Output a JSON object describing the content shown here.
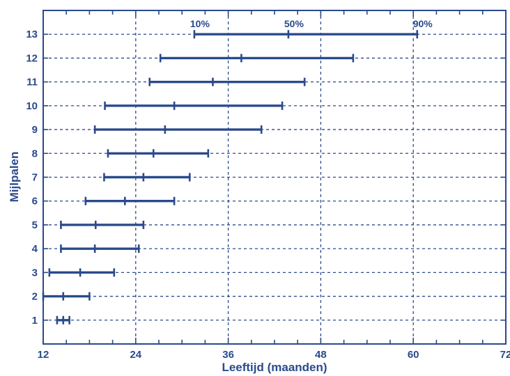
{
  "chart_data": {
    "type": "range",
    "xlabel": "Leeftijd (maanden)",
    "ylabel": "Mijlpalen",
    "xlim": [
      12,
      72
    ],
    "ylim": [
      0,
      14
    ],
    "x_ticks": [
      12,
      24,
      36,
      48,
      60,
      72
    ],
    "y_ticks": [
      1,
      2,
      3,
      4,
      5,
      6,
      7,
      8,
      9,
      10,
      11,
      12,
      13
    ],
    "grid": true,
    "percentile_labels": [
      "10%",
      "50%",
      "90%"
    ],
    "color": "#2a4a8c",
    "milestones": [
      {
        "milestone": 1,
        "p10": 13.8,
        "p50": 14.6,
        "p90": 15.4
      },
      {
        "milestone": 2,
        "p10": 12.0,
        "p50": 14.6,
        "p90": 18.0
      },
      {
        "milestone": 3,
        "p10": 12.8,
        "p50": 16.8,
        "p90": 21.2
      },
      {
        "milestone": 4,
        "p10": 14.3,
        "p50": 18.7,
        "p90": 24.4
      },
      {
        "milestone": 5,
        "p10": 14.3,
        "p50": 18.8,
        "p90": 25.0
      },
      {
        "milestone": 6,
        "p10": 17.5,
        "p50": 22.6,
        "p90": 29.0
      },
      {
        "milestone": 7,
        "p10": 19.9,
        "p50": 25.0,
        "p90": 31.0
      },
      {
        "milestone": 8,
        "p10": 20.4,
        "p50": 26.3,
        "p90": 33.4
      },
      {
        "milestone": 9,
        "p10": 18.7,
        "p50": 27.8,
        "p90": 40.3
      },
      {
        "milestone": 10,
        "p10": 20.0,
        "p50": 29.0,
        "p90": 43.0
      },
      {
        "milestone": 11,
        "p10": 25.8,
        "p50": 34.0,
        "p90": 45.9
      },
      {
        "milestone": 12,
        "p10": 27.2,
        "p50": 37.7,
        "p90": 52.2
      },
      {
        "milestone": 13,
        "p10": 31.6,
        "p50": 43.8,
        "p90": 60.5
      }
    ]
  }
}
